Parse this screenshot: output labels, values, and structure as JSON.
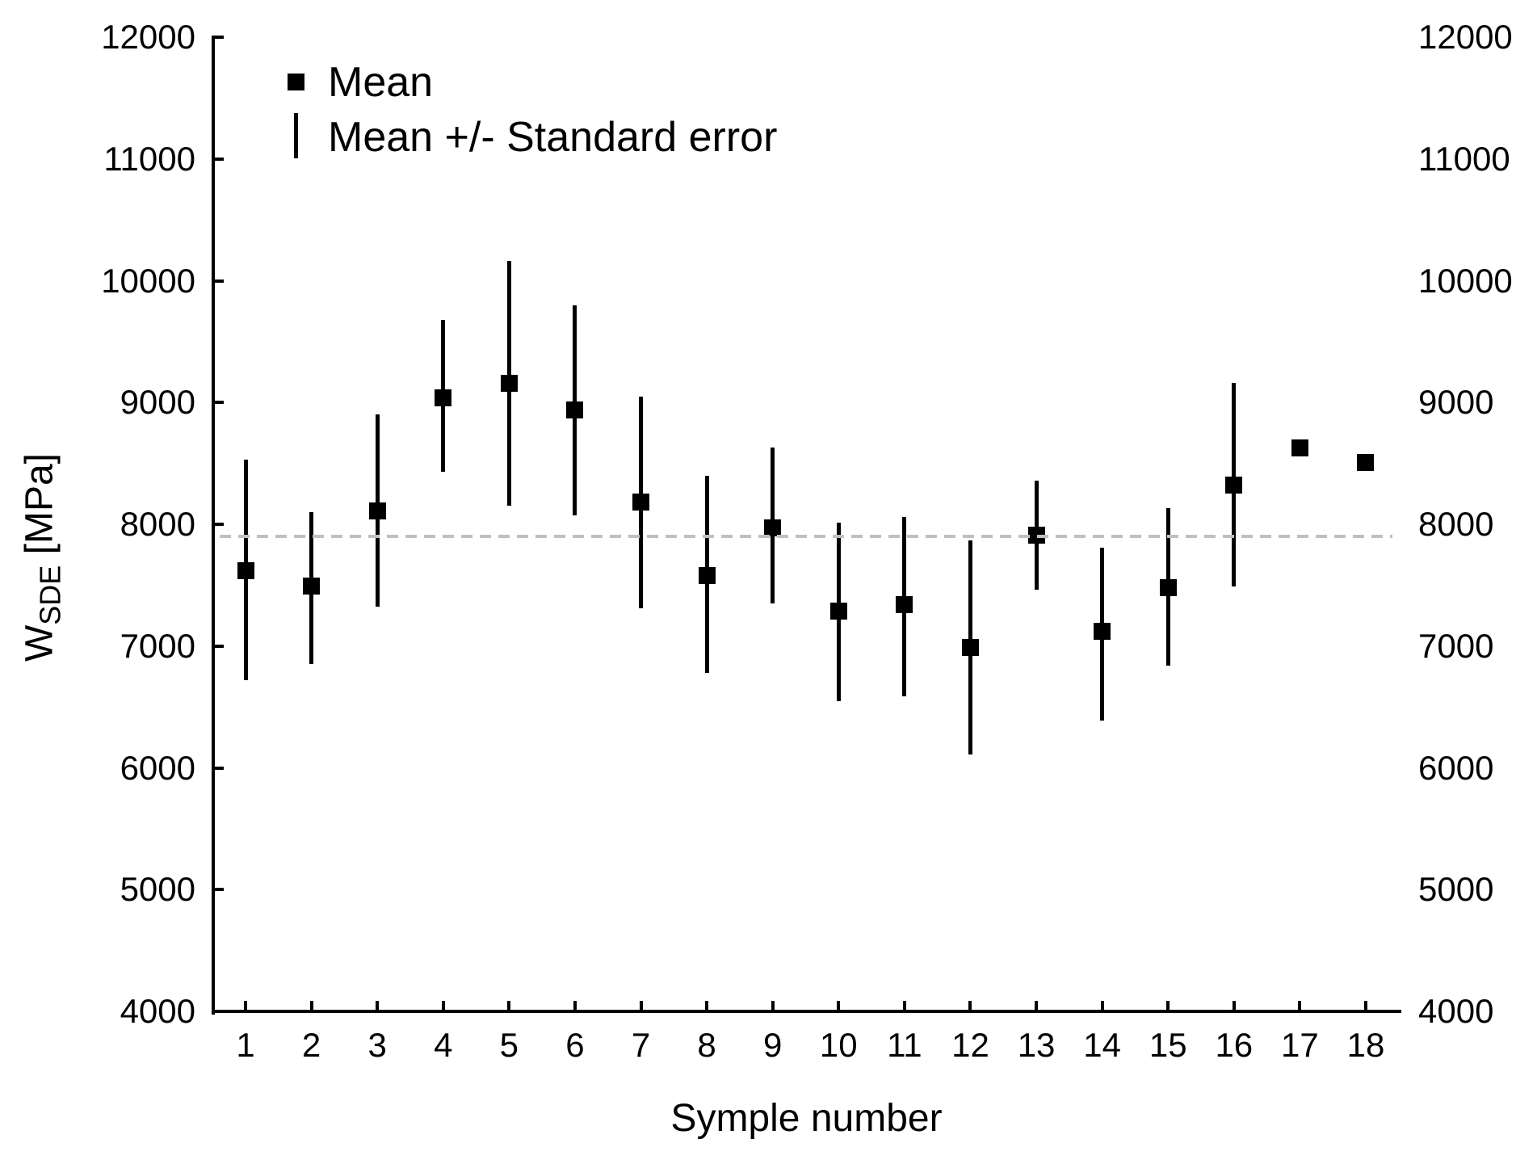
{
  "chart_data": {
    "type": "scatter",
    "title": "",
    "xlabel": "Symple number",
    "ylabel": "W_SDE [MPa]",
    "ylabel_base": "W",
    "ylabel_sub": "SDE",
    "ylabel_unit": " [MPa]",
    "ylim": [
      4000,
      12000
    ],
    "yticks": [
      "12000",
      "11000",
      "10000",
      "9000",
      "8000",
      "7000",
      "6000",
      "5000",
      "4000"
    ],
    "ytick_values": [
      12000,
      11000,
      10000,
      9000,
      8000,
      7000,
      6000,
      5000,
      4000
    ],
    "x_categories": [
      "1",
      "2",
      "3",
      "4",
      "5",
      "6",
      "7",
      "8",
      "9",
      "10",
      "11",
      "12",
      "13",
      "14",
      "15",
      "16",
      "17",
      "18"
    ],
    "grid": false,
    "right_tick_labels": true,
    "reference_line": {
      "value": 7900,
      "style": "dashed"
    },
    "legend": [
      {
        "marker": "filled-square-icon",
        "label": "Mean"
      },
      {
        "marker": "vertical-line-icon",
        "label": "Mean +/- Standard error"
      }
    ],
    "series": [
      {
        "name": "Mean",
        "marker": "filled-square",
        "points": [
          {
            "x": 1,
            "mean": 7620,
            "upper": 8530,
            "lower": 6720
          },
          {
            "x": 2,
            "mean": 7490,
            "upper": 8100,
            "lower": 6850
          },
          {
            "x": 3,
            "mean": 8110,
            "upper": 8900,
            "lower": 7320
          },
          {
            "x": 4,
            "mean": 9040,
            "upper": 9680,
            "lower": 8430
          },
          {
            "x": 5,
            "mean": 9160,
            "upper": 10160,
            "lower": 8150
          },
          {
            "x": 6,
            "mean": 8940,
            "upper": 9800,
            "lower": 8070
          },
          {
            "x": 7,
            "mean": 8180,
            "upper": 9050,
            "lower": 7310
          },
          {
            "x": 8,
            "mean": 7580,
            "upper": 8400,
            "lower": 6780
          },
          {
            "x": 9,
            "mean": 7970,
            "upper": 8630,
            "lower": 7350
          },
          {
            "x": 10,
            "mean": 7290,
            "upper": 8010,
            "lower": 6550
          },
          {
            "x": 11,
            "mean": 7340,
            "upper": 8060,
            "lower": 6590
          },
          {
            "x": 12,
            "mean": 6990,
            "upper": 7870,
            "lower": 6110
          },
          {
            "x": 13,
            "mean": 7910,
            "upper": 8360,
            "lower": 7460
          },
          {
            "x": 14,
            "mean": 7120,
            "upper": 7810,
            "lower": 6390
          },
          {
            "x": 15,
            "mean": 7480,
            "upper": 8130,
            "lower": 6840
          },
          {
            "x": 16,
            "mean": 8320,
            "upper": 9160,
            "lower": 7490
          },
          {
            "x": 17,
            "mean": 8630,
            "upper": null,
            "lower": null
          },
          {
            "x": 18,
            "mean": 8510,
            "upper": null,
            "lower": null
          }
        ]
      }
    ]
  },
  "colors": {
    "foreground": "#000000",
    "reference_line": "#c0c0c0",
    "background": "#ffffff"
  }
}
